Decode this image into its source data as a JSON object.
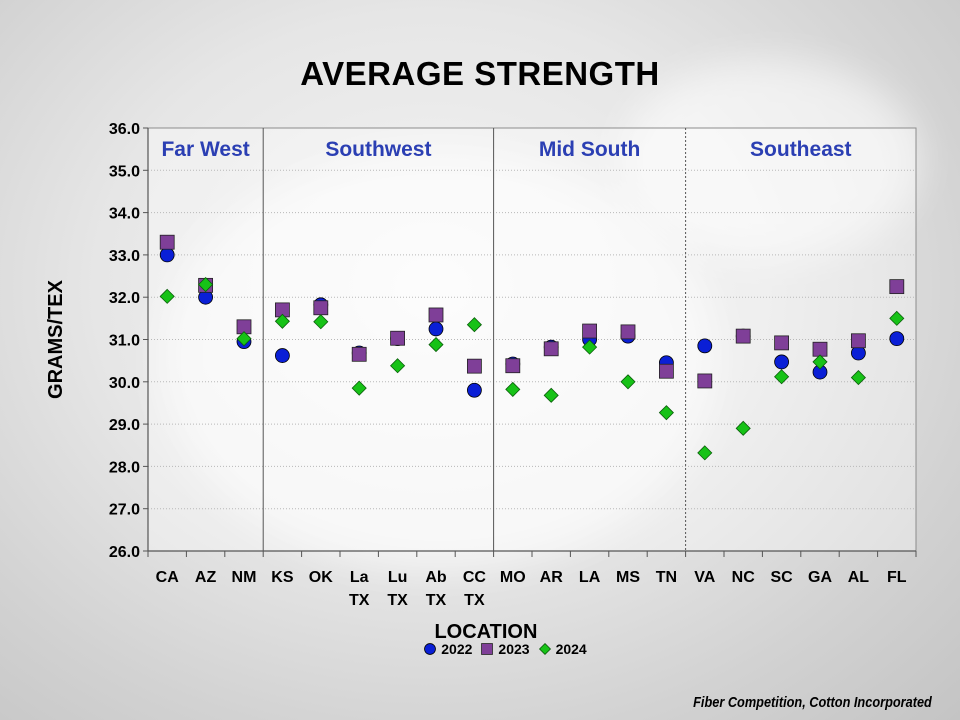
{
  "chart_data": {
    "type": "scatter",
    "title": "AVERAGE STRENGTH",
    "xlabel": "LOCATION",
    "ylabel": "GRAMS/TEX",
    "ylim": [
      26.0,
      36.0
    ],
    "yticks": [
      "26.0",
      "27.0",
      "28.0",
      "29.0",
      "30.0",
      "31.0",
      "32.0",
      "33.0",
      "34.0",
      "35.0",
      "36.0"
    ],
    "categories": [
      [
        "CA"
      ],
      [
        "AZ"
      ],
      [
        "NM"
      ],
      [
        "KS"
      ],
      [
        "OK"
      ],
      [
        "La",
        "TX"
      ],
      [
        "Lu",
        "TX"
      ],
      [
        "Ab",
        "TX"
      ],
      [
        "CC",
        "TX"
      ],
      [
        "MO"
      ],
      [
        "AR"
      ],
      [
        "LA"
      ],
      [
        "MS"
      ],
      [
        "TN"
      ],
      [
        "VA"
      ],
      [
        "NC"
      ],
      [
        "SC"
      ],
      [
        "GA"
      ],
      [
        "AL"
      ],
      [
        "FL"
      ]
    ],
    "regions": [
      {
        "label": "Far West",
        "start": 0,
        "end": 2,
        "divider_after": "solid"
      },
      {
        "label": "Southwest",
        "start": 3,
        "end": 8,
        "divider_after": "solid"
      },
      {
        "label": "Mid South",
        "start": 9,
        "end": 13,
        "divider_after": "dotted"
      },
      {
        "label": "Southeast",
        "start": 14,
        "end": 19,
        "divider_after": null
      }
    ],
    "series": [
      {
        "name": "2022",
        "marker": "circle",
        "color": "#0a1fd6",
        "values": [
          33.0,
          32.0,
          30.95,
          30.62,
          31.82,
          30.68,
          31.02,
          31.25,
          29.8,
          30.42,
          30.82,
          31.0,
          31.08,
          30.45,
          30.85,
          31.08,
          30.47,
          30.23,
          30.68,
          31.02
        ]
      },
      {
        "name": "2023",
        "marker": "square",
        "color": "#7f3f98",
        "values": [
          33.3,
          32.28,
          31.3,
          31.7,
          31.75,
          30.65,
          31.03,
          31.58,
          30.37,
          30.38,
          30.78,
          31.2,
          31.18,
          30.25,
          30.02,
          31.08,
          30.92,
          30.77,
          30.97,
          32.25
        ]
      },
      {
        "name": "2024",
        "marker": "diamond",
        "color": "#17c217",
        "values": [
          32.02,
          32.3,
          31.02,
          31.43,
          31.42,
          29.85,
          30.38,
          30.88,
          31.35,
          29.82,
          29.68,
          30.82,
          30.0,
          29.27,
          28.32,
          28.9,
          30.12,
          30.47,
          30.1,
          31.5
        ]
      }
    ],
    "legend_position": "bottom-center"
  },
  "footer": "Fiber Competition, Cotton Incorporated",
  "colors": {
    "region_label": "#2b3fb3",
    "grid": "#b8b8b8"
  }
}
